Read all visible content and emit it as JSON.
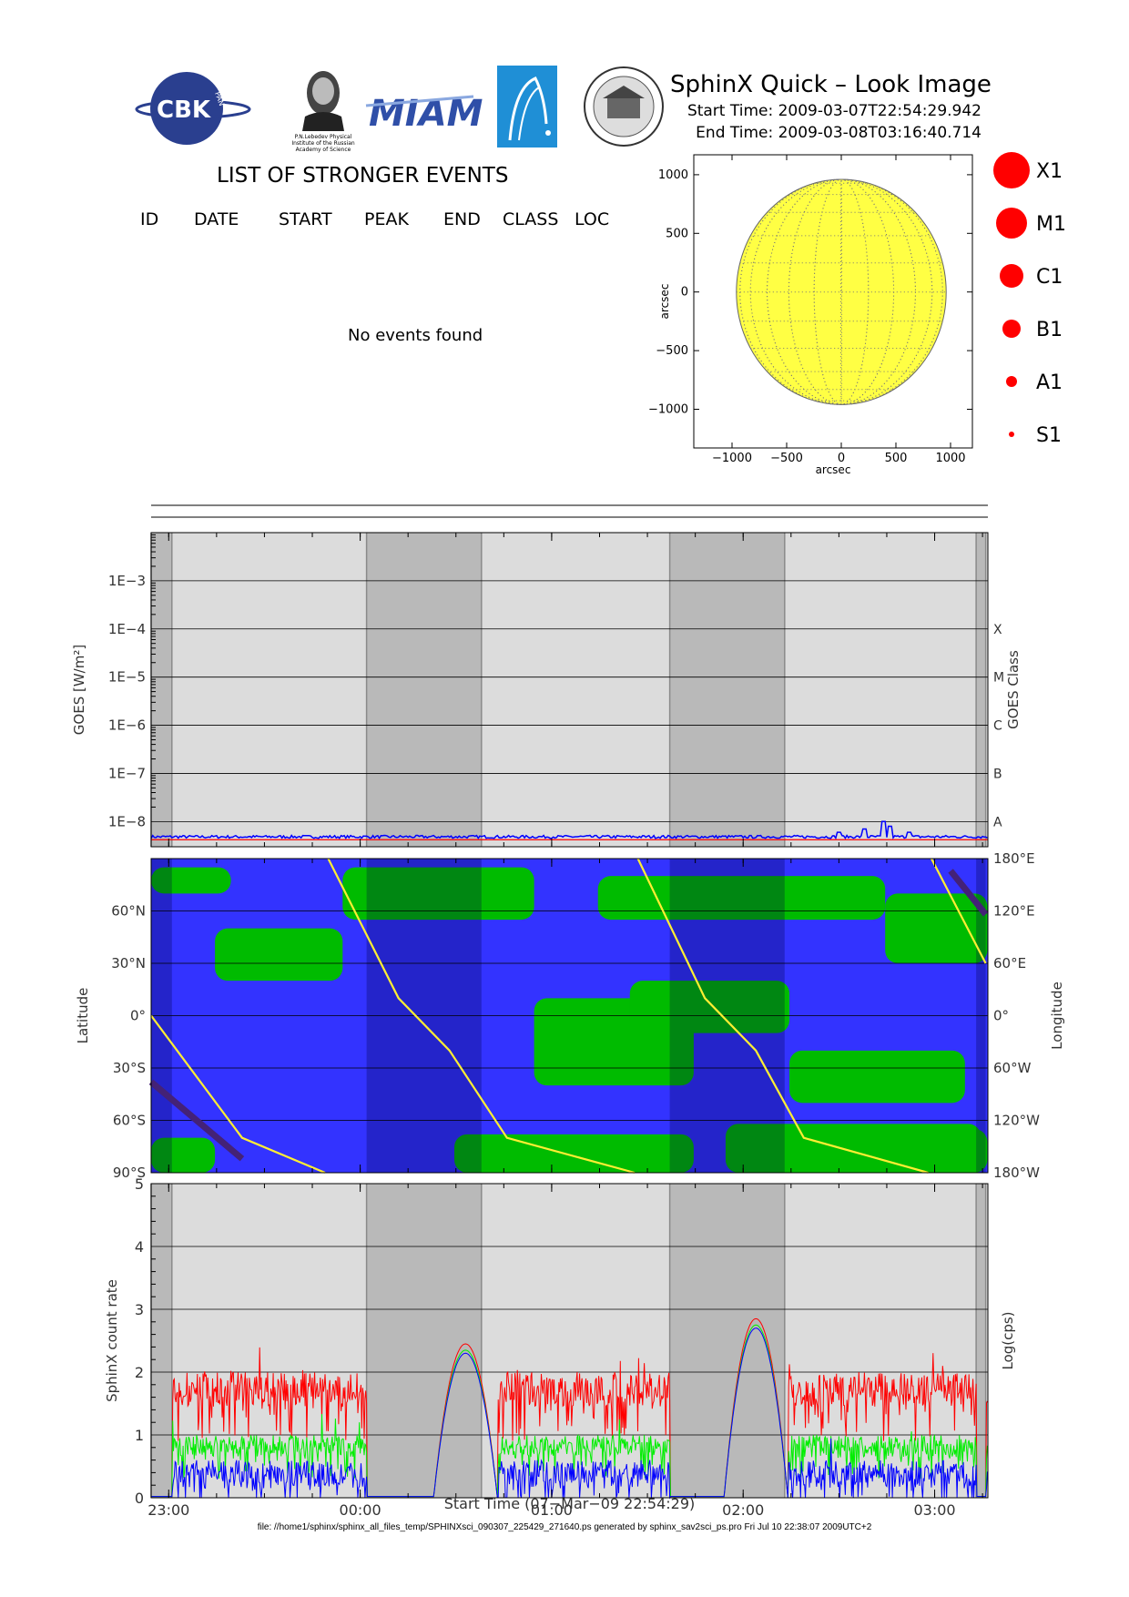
{
  "header": {
    "title": "SphinX Quick – Look Image",
    "start_time": "Start Time: 2009-03-07T22:54:29.942",
    "end_time": "End Time: 2009-03-08T03:16:40.714",
    "logos": {
      "cbk": "CBK",
      "cbk_sub": "PAN",
      "lebedev_caption": "P.N.Lebedev Physical Institute of the Russian Academy of Science",
      "miami": "MIAM",
      "seal_text": "SIGILLUM UNIVERSITATIS"
    }
  },
  "events": {
    "title": "LIST OF STRONGER EVENTS",
    "columns": [
      "ID",
      "DATE",
      "START",
      "PEAK",
      "END",
      "CLASS",
      "LOC"
    ],
    "message": "No events found"
  },
  "size_legend": {
    "color": "#ff0000",
    "items": [
      {
        "label": "X1"
      },
      {
        "label": "M1"
      },
      {
        "label": "C1"
      },
      {
        "label": "B1"
      },
      {
        "label": "A1"
      },
      {
        "label": "S1"
      }
    ]
  },
  "footer": "file: //home1/sphinx/sphinx_all_files_temp/SPHINXsci_090307_225429_271640.ps generated by sphinx_sav2sci_ps.pro Fri Jul 10 22:38:07 2009UTC+2",
  "chart_data": [
    {
      "type": "scatter",
      "name": "solar-disk",
      "xlabel": "arcsec",
      "ylabel": "arcsec",
      "xlim": [
        -1350,
        1200
      ],
      "ylim": [
        -1330,
        1170
      ],
      "xticks": [
        -1000,
        -500,
        0,
        500,
        1000
      ],
      "xtick_labels": [
        "−1000",
        "−500",
        "0",
        "500",
        "1000"
      ],
      "yticks": [
        -1000,
        -500,
        0,
        500,
        1000
      ],
      "ytick_labels": [
        "−1000",
        "−500",
        "0",
        "500",
        "1000"
      ],
      "disk": {
        "center": [
          0,
          0
        ],
        "radius": 960,
        "color": "#ffff44"
      },
      "grid": "dotted heliographic grid",
      "events": []
    },
    {
      "type": "line",
      "name": "goes-flux",
      "ylabel": "GOES [W/m²]",
      "y2label": "GOES Class",
      "y_scale": "log",
      "ylim": [
        3e-09,
        0.01
      ],
      "yticks": [
        1e-08,
        1e-07,
        1e-06,
        1e-05,
        0.0001,
        0.001
      ],
      "ytick_labels": [
        "1E−8",
        "1E−7",
        "1E−6",
        "1E−5",
        "1E−4",
        "1E−3"
      ],
      "class_ticks": [
        {
          "label": "A",
          "value": 1e-08
        },
        {
          "label": "B",
          "value": 1e-07
        },
        {
          "label": "C",
          "value": 1e-06
        },
        {
          "label": "M",
          "value": 1e-05
        },
        {
          "label": "X",
          "value": 0.0001
        }
      ],
      "series": [
        {
          "color": "#0000ff",
          "level": 4.5e-09,
          "spikes": [
            [
              "02:30",
              6e-09
            ],
            [
              "02:38",
              7e-09
            ],
            [
              "02:44",
              1e-08
            ],
            [
              "02:46",
              8e-09
            ],
            [
              "02:52",
              6e-09
            ]
          ]
        },
        {
          "color": "#ff0000",
          "level": 4.2e-09
        }
      ]
    },
    {
      "type": "line",
      "name": "orbit-track",
      "ylabel": "Latitude",
      "y2label": "Longitude",
      "ylim": [
        -90,
        90
      ],
      "yticks": [
        -90,
        -60,
        -30,
        0,
        30,
        60
      ],
      "ytick_labels": [
        "90°S",
        "60°S",
        "30°S",
        "0°",
        "30°N",
        "60°N"
      ],
      "y2ticks": [
        -180,
        -120,
        -60,
        0,
        60,
        120,
        180
      ],
      "y2tick_labels": [
        "180°W",
        "120°W",
        "60°W",
        "0°",
        "60°E",
        "120°E",
        "180°E"
      ],
      "background": {
        "high": "#00bb00",
        "low": "#3333ff"
      },
      "series": [
        {
          "color": "#442277",
          "points": [
            [
              "22:54",
              -38
            ],
            [
              "23:23",
              -82
            ],
            [
              "00:00",
              83
            ],
            [
              "00:46",
              -82
            ],
            [
              "01:33",
              83
            ],
            [
              "02:19",
              -82
            ],
            [
              "03:05",
              83
            ],
            [
              "03:16",
              58
            ]
          ]
        },
        {
          "color": "#ffee33",
          "points": [
            [
              "22:54",
              0
            ],
            [
              "23:23",
              -70
            ],
            [
              "23:49",
              -90
            ],
            [
              "23:50",
              90
            ],
            [
              "00:12",
              10
            ],
            [
              "00:28",
              -20
            ],
            [
              "00:46",
              -70
            ],
            [
              "01:26",
              -90
            ],
            [
              "01:27",
              90
            ],
            [
              "01:48",
              10
            ],
            [
              "02:04",
              -20
            ],
            [
              "02:19",
              -70
            ],
            [
              "02:58",
              -90
            ],
            [
              "02:59",
              90
            ],
            [
              "03:16",
              30
            ]
          ]
        }
      ]
    },
    {
      "type": "line",
      "name": "sphinx-count-rate",
      "ylabel": "SphinX count rate",
      "y2label": "Log(cps)",
      "xlabel": "Start Time (07−Mar−09 22:54:29)",
      "ylim": [
        0,
        5
      ],
      "yticks": [
        0,
        1,
        2,
        3,
        4,
        5
      ],
      "xticks": [
        "23:00",
        "00:00",
        "01:00",
        "02:00",
        "03:00"
      ],
      "xlim": [
        "22:54:29",
        "03:16:40"
      ],
      "series": [
        {
          "color": "#ff0000",
          "level": 2.0,
          "peaks": [
            [
              "00:33",
              2.45
            ],
            [
              "02:04",
              2.85
            ]
          ]
        },
        {
          "color": "#00ee00",
          "level": 1.0,
          "peaks": [
            [
              "00:33",
              2.35
            ],
            [
              "02:04",
              2.75
            ]
          ]
        },
        {
          "color": "#0000ff",
          "level": 0.6,
          "peaks": [
            [
              "00:33",
              2.3
            ],
            [
              "02:04",
              2.7
            ]
          ]
        }
      ],
      "eclipse_intervals": [
        [
          "22:54",
          "23:01"
        ],
        [
          "00:02",
          "00:38"
        ],
        [
          "01:37",
          "02:13"
        ],
        [
          "03:13",
          "03:16"
        ]
      ]
    }
  ]
}
